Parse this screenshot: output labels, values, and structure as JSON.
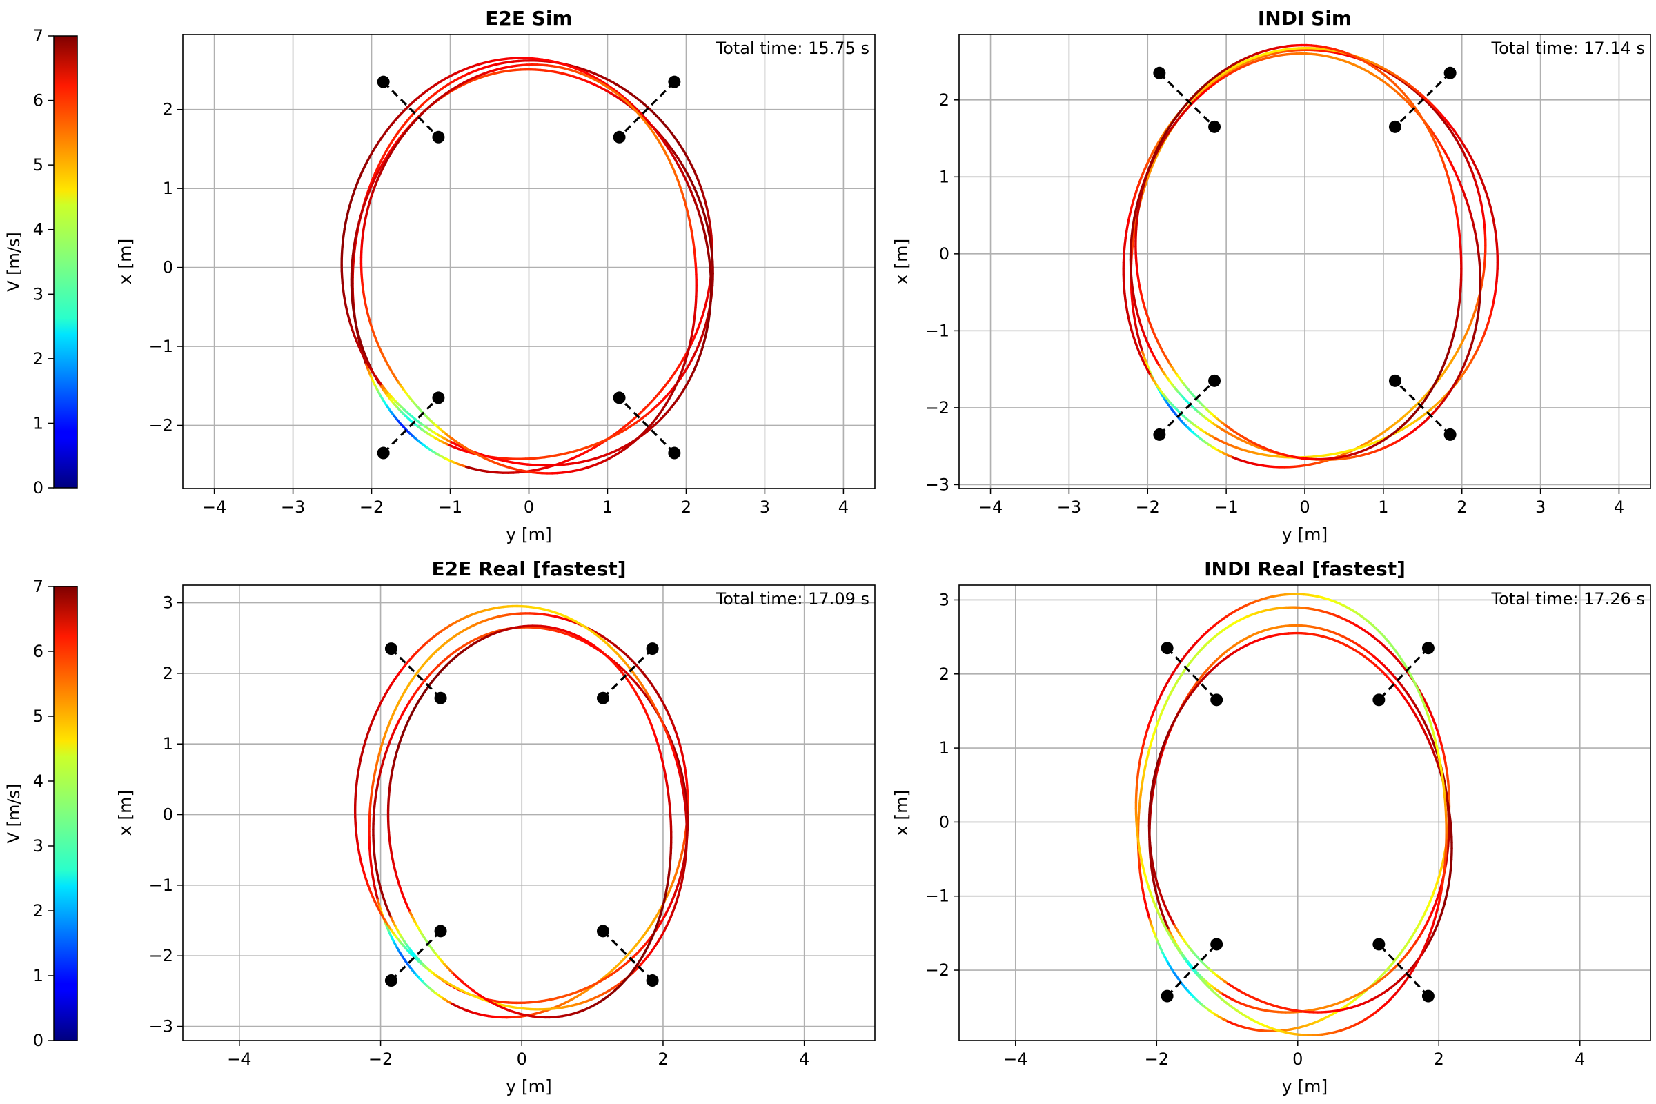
{
  "colorbar": {
    "label": "V [m/s]",
    "min": 0,
    "max": 7,
    "ticks": [
      "0",
      "1",
      "2",
      "3",
      "4",
      "5",
      "6",
      "7"
    ],
    "colormap": "jet"
  },
  "colors": {
    "gate_post": "#000000",
    "grid": "#b0b0b0",
    "axis": "#000000"
  },
  "chart_data": [
    {
      "type": "line",
      "title": "E2E Sim",
      "xlabel": "y [m]",
      "ylabel": "x [m]",
      "annotation": "Total time: 15.75 s",
      "xlim": [
        -4.4,
        4.4
      ],
      "ylim": [
        -2.8,
        2.95
      ],
      "xticks": [
        -4,
        -3,
        -2,
        -1,
        0,
        1,
        2,
        3,
        4
      ],
      "yticks": [
        -2,
        -1,
        0,
        1,
        2
      ],
      "xtick_labels": [
        "−4",
        "−3",
        "−2",
        "−1",
        "0",
        "1",
        "2",
        "3",
        "4"
      ],
      "ytick_labels": [
        "−2",
        "−1",
        "0",
        "1",
        "2"
      ],
      "gates": [
        {
          "y1": -1.85,
          "x1": 2.35,
          "y2": -1.15,
          "x2": 1.65
        },
        {
          "y1": 1.85,
          "x1": 2.35,
          "y2": 1.15,
          "x2": 1.65
        },
        {
          "y1": -1.85,
          "x1": -2.35,
          "y2": -1.15,
          "x2": -1.65
        },
        {
          "y1": 1.85,
          "x1": -2.35,
          "y2": 1.15,
          "x2": -1.65
        }
      ],
      "laps": [
        {
          "ry": 2.28,
          "rx": 2.6,
          "cy": 0.0,
          "cx": 0.02,
          "v_base": 6.4,
          "v_amp": 0.5
        },
        {
          "ry": 2.22,
          "rx": 2.55,
          "cy": 0.02,
          "cx": 0.0,
          "v_base": 6.3,
          "v_amp": 0.6
        },
        {
          "ry": 2.3,
          "rx": 2.62,
          "cy": -0.02,
          "cx": 0.03,
          "v_base": 6.5,
          "v_amp": 0.4
        },
        {
          "ry": 2.18,
          "rx": 2.52,
          "cy": 0.04,
          "cx": -0.02,
          "v_base": 6.0,
          "v_amp": 0.7
        }
      ],
      "slow_point": {
        "y": -1.5,
        "x": -2.0
      }
    },
    {
      "type": "line",
      "title": "INDI Sim",
      "xlabel": "y [m]",
      "ylabel": "x [m]",
      "annotation": "Total time: 17.14 s",
      "xlim": [
        -4.4,
        4.4
      ],
      "ylim": [
        -3.05,
        2.85
      ],
      "xticks": [
        -4,
        -3,
        -2,
        -1,
        0,
        1,
        2,
        3,
        4
      ],
      "yticks": [
        -3,
        -2,
        -1,
        0,
        1,
        2
      ],
      "xtick_labels": [
        "−4",
        "−3",
        "−2",
        "−1",
        "0",
        "1",
        "2",
        "3",
        "4"
      ],
      "ytick_labels": [
        "−3",
        "−2",
        "−1",
        "0",
        "1",
        "2"
      ],
      "gates": [
        {
          "y1": -1.85,
          "x1": 2.35,
          "y2": -1.15,
          "x2": 1.65
        },
        {
          "y1": 1.85,
          "x1": 2.35,
          "y2": 1.15,
          "x2": 1.65
        },
        {
          "y1": -1.85,
          "x1": -2.35,
          "y2": -1.15,
          "x2": -1.65
        },
        {
          "y1": 1.85,
          "x1": -2.35,
          "y2": 1.15,
          "x2": -1.65
        }
      ],
      "laps": [
        {
          "ry": 2.25,
          "rx": 2.7,
          "cy": 0.0,
          "cx": -0.05,
          "v_base": 5.8,
          "v_amp": 0.9
        },
        {
          "ry": 2.3,
          "rx": 2.75,
          "cy": 0.05,
          "cx": -0.03,
          "v_base": 5.5,
          "v_amp": 1.0
        },
        {
          "ry": 2.18,
          "rx": 2.68,
          "cy": 0.02,
          "cx": -0.08,
          "v_base": 6.0,
          "v_amp": 0.8
        },
        {
          "ry": 2.12,
          "rx": 2.62,
          "cy": -0.04,
          "cx": 0.02,
          "v_base": 6.2,
          "v_amp": 0.7
        }
      ],
      "slow_point": {
        "y": -1.5,
        "x": -2.0
      }
    },
    {
      "type": "line",
      "title": "E2E Real [fastest]",
      "xlabel": "y [m]",
      "ylabel": "x [m]",
      "annotation": "Total time: 17.09 s",
      "xlim": [
        -4.8,
        5.0
      ],
      "ylim": [
        -3.2,
        3.25
      ],
      "xticks": [
        -4,
        -2,
        0,
        2,
        4
      ],
      "yticks": [
        -3,
        -2,
        -1,
        0,
        1,
        2,
        3
      ],
      "xtick_labels": [
        "−4",
        "−2",
        "0",
        "2",
        "4"
      ],
      "ytick_labels": [
        "−3",
        "−2",
        "−1",
        "0",
        "1",
        "2",
        "3"
      ],
      "gates": [
        {
          "y1": -1.85,
          "x1": 2.35,
          "y2": -1.15,
          "x2": 1.65
        },
        {
          "y1": 1.85,
          "x1": 2.35,
          "y2": 1.15,
          "x2": 1.65
        },
        {
          "y1": -1.85,
          "x1": -2.35,
          "y2": -1.15,
          "x2": -1.65
        },
        {
          "y1": 1.85,
          "x1": -2.35,
          "y2": 1.15,
          "x2": -1.65
        }
      ],
      "laps": [
        {
          "ry": 2.25,
          "rx": 2.85,
          "cy": 0.05,
          "cx": 0.0,
          "v_base": 5.8,
          "v_amp": 0.9
        },
        {
          "ry": 2.15,
          "rx": 2.75,
          "cy": 0.1,
          "cx": -0.05,
          "v_base": 6.2,
          "v_amp": 0.6
        },
        {
          "ry": 2.3,
          "rx": 2.9,
          "cy": 0.0,
          "cx": 0.05,
          "v_base": 5.6,
          "v_amp": 1.0
        },
        {
          "ry": 2.05,
          "rx": 2.7,
          "cy": 0.15,
          "cx": -0.1,
          "v_base": 6.5,
          "v_amp": 0.5
        }
      ],
      "slow_point": {
        "y": -1.5,
        "x": -2.0
      }
    },
    {
      "type": "line",
      "title": "INDI Real [fastest]",
      "xlabel": "y [m]",
      "ylabel": "x [m]",
      "annotation": "Total time: 17.26 s",
      "xlim": [
        -4.8,
        5.0
      ],
      "ylim": [
        -2.95,
        3.2
      ],
      "xticks": [
        -4,
        -2,
        0,
        2,
        4
      ],
      "yticks": [
        -2,
        -1,
        0,
        1,
        2,
        3
      ],
      "xtick_labels": [
        "−4",
        "−2",
        "0",
        "2",
        "4"
      ],
      "ytick_labels": [
        "−2",
        "−1",
        "0",
        "1",
        "2",
        "3"
      ],
      "gates": [
        {
          "y1": -1.85,
          "x1": 2.35,
          "y2": -1.15,
          "x2": 1.65
        },
        {
          "y1": 1.85,
          "x1": 2.35,
          "y2": 1.15,
          "x2": 1.65
        },
        {
          "y1": -1.85,
          "x1": -2.35,
          "y2": -1.15,
          "x2": -1.65
        },
        {
          "y1": 1.85,
          "x1": -2.35,
          "y2": 1.15,
          "x2": -1.65
        }
      ],
      "laps": [
        {
          "ry": 2.2,
          "rx": 2.85,
          "cy": -0.1,
          "cx": 0.05,
          "v_base": 5.2,
          "v_amp": 1.2
        },
        {
          "ry": 2.05,
          "rx": 2.7,
          "cy": 0.0,
          "cx": 0.0,
          "v_base": 6.0,
          "v_amp": 0.8
        },
        {
          "ry": 2.1,
          "rx": 2.6,
          "cy": 0.05,
          "cx": -0.05,
          "v_base": 6.4,
          "v_amp": 0.5
        },
        {
          "ry": 2.25,
          "rx": 2.9,
          "cy": -0.05,
          "cx": 0.1,
          "v_base": 5.0,
          "v_amp": 1.3
        }
      ],
      "slow_point": {
        "y": -1.5,
        "x": -2.0
      }
    }
  ]
}
